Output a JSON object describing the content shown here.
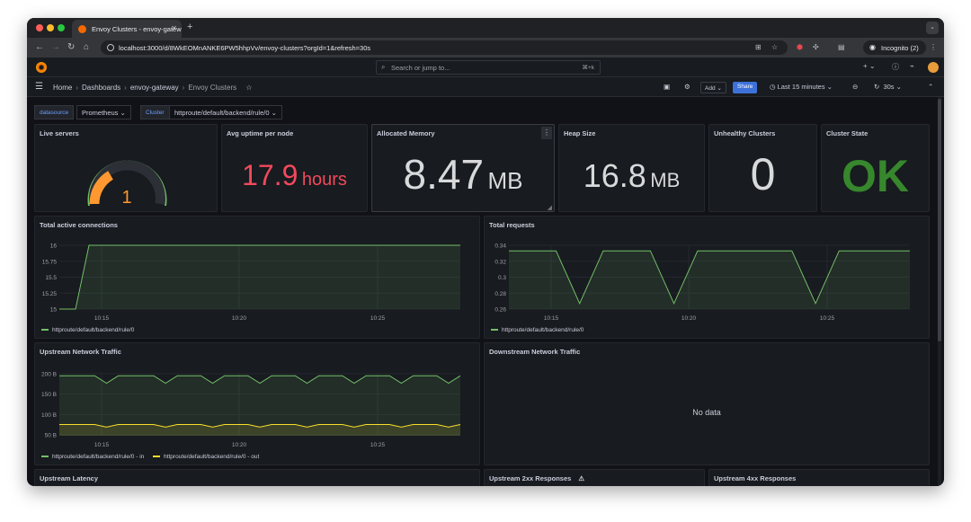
{
  "browser": {
    "tab_title": "Envoy Clusters - envoy-gatew",
    "url": "localhost:3000/d/8WkEOMnANKE6PW5hhpVv/envoy-clusters?orgId=1&refresh=30s",
    "incognito_label": "Incognito (2)"
  },
  "grafana": {
    "search_placeholder": "Search or jump to...",
    "search_shortcut": "⌘+k"
  },
  "breadcrumb": {
    "items": [
      "Home",
      "Dashboards",
      "envoy-gateway",
      "Envoy Clusters"
    ]
  },
  "toolbar": {
    "add_label": "Add",
    "share_label": "Share",
    "time_range": "Last 15 minutes",
    "refresh_interval": "30s"
  },
  "variables": {
    "datasource_label": "datasource",
    "datasource_value": "Prometheus",
    "cluster_label": "Cluster",
    "cluster_value": "httproute/default/backend/rule/0"
  },
  "colors": {
    "green": "#73bf69",
    "yellow": "#fade2a",
    "red": "#f2495c",
    "orange": "#ff9830",
    "ok_green": "#37872d"
  },
  "panels": {
    "live_servers": {
      "title": "Live servers",
      "value": "1",
      "gauge_fraction": 1.0
    },
    "avg_uptime": {
      "title": "Avg uptime per node",
      "value": "17.9",
      "unit": "hours"
    },
    "allocated_memory": {
      "title": "Allocated Memory",
      "value": "8.47",
      "unit": "MB"
    },
    "heap_size": {
      "title": "Heap Size",
      "value": "16.8",
      "unit": "MB"
    },
    "unhealthy_clusters": {
      "title": "Unhealthy Clusters",
      "value": "0"
    },
    "cluster_state": {
      "title": "Cluster State",
      "value": "OK"
    },
    "total_active_connections": {
      "title": "Total active connections",
      "legend": [
        "httproute/default/backend/rule/0"
      ]
    },
    "total_requests": {
      "title": "Total requests",
      "legend": [
        "httproute/default/backend/rule/0"
      ]
    },
    "upstream_network_traffic": {
      "title": "Upstream Network Traffic",
      "legend": [
        "httproute/default/backend/rule/0 - in",
        "httproute/default/backend/rule/0 - out"
      ]
    },
    "downstream_network_traffic": {
      "title": "Downstream Network Traffic",
      "no_data": "No data"
    },
    "upstream_latency": {
      "title": "Upstream Latency"
    },
    "upstream_2xx": {
      "title": "Upstream 2xx Responses"
    },
    "upstream_4xx": {
      "title": "Upstream 4xx Responses"
    }
  },
  "chart_data": [
    {
      "type": "line",
      "yticks": [
        "16",
        "15.75",
        "15.5",
        "15.25",
        "15"
      ],
      "xticks": [
        "10:15",
        "10:20",
        "10:25"
      ],
      "ylim": [
        15,
        16
      ],
      "x": [
        "10:12",
        "10:13",
        "10:14",
        "10:15",
        "10:20",
        "10:25",
        "10:27"
      ],
      "series": [
        {
          "name": "httproute/default/backend/rule/0",
          "values": [
            15,
            15,
            16,
            16,
            16,
            16,
            16
          ]
        }
      ]
    },
    {
      "type": "line",
      "yticks": [
        "0.34",
        "0.32",
        "0.3",
        "0.28",
        "0.26"
      ],
      "xticks": [
        "10:15",
        "10:20",
        "10:25"
      ],
      "ylim": [
        0.26,
        0.34
      ],
      "series": [
        {
          "name": "httproute/default/backend/rule/0",
          "values": [
            0.333,
            0.333,
            0.333,
            0.267,
            0.333,
            0.333,
            0.333,
            0.267,
            0.333,
            0.333,
            0.333,
            0.333,
            0.333,
            0.267,
            0.333,
            0.333,
            0.333,
            0.333
          ]
        }
      ]
    },
    {
      "type": "line",
      "yticks": [
        "200 B",
        "150 B",
        "100 B",
        "50 B"
      ],
      "xticks": [
        "10:15",
        "10:20",
        "10:25"
      ],
      "ylim": [
        40,
        210
      ],
      "series": [
        {
          "name": "httproute/default/backend/rule/0 - in",
          "values": [
            200,
            200,
            200,
            200,
            180,
            200,
            200,
            200,
            200,
            180,
            200,
            200,
            200,
            180,
            200,
            200,
            200,
            180,
            200,
            200,
            200,
            180,
            200,
            200,
            200,
            180,
            200,
            200,
            200,
            180,
            200,
            200,
            200,
            180,
            200
          ]
        },
        {
          "name": "httproute/default/backend/rule/0 - out",
          "values": [
            70,
            70,
            70,
            70,
            63,
            70,
            70,
            70,
            70,
            63,
            70,
            70,
            70,
            63,
            70,
            70,
            70,
            63,
            70,
            70,
            70,
            63,
            70,
            70,
            70,
            63,
            70,
            70,
            70,
            63,
            70,
            70,
            70,
            63,
            70
          ]
        }
      ]
    }
  ]
}
